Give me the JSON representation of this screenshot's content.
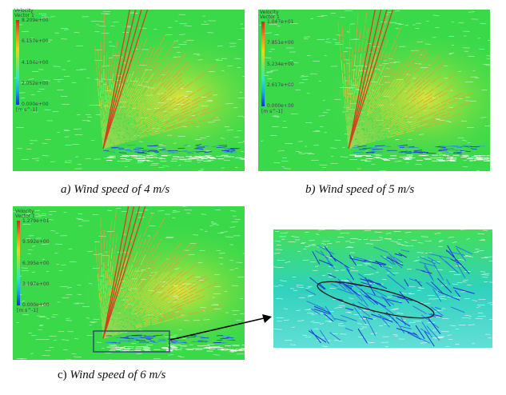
{
  "panels": [
    {
      "id": "a",
      "legend": {
        "title_line1": "Velocity",
        "title_line2": "Vector 1",
        "ticks": [
          "8.209e+00",
          "6.157e+00",
          "4.104e+00",
          "2.052e+00",
          "0.000e+00"
        ],
        "unit": "[m s^-1]"
      },
      "caption": "a) Wind speed of 4 m/s"
    },
    {
      "id": "b",
      "legend": {
        "title_line1": "Velocity",
        "title_line2": "Vector 1",
        "ticks": [
          "1.047e+01",
          "7.851e+00",
          "5.234e+00",
          "2.617e+00",
          "0.000e+00"
        ],
        "unit": "[m s^-1]"
      },
      "caption": "b) Wind speed of 5 m/s"
    },
    {
      "id": "c",
      "legend": {
        "title_line1": "Velocity",
        "title_line2": "Vector 1",
        "ticks": [
          "1.279e+01",
          "9.592e+00",
          "6.395e+00",
          "3.197e+00",
          "0.000e+00"
        ],
        "unit": "[m s^-1]"
      },
      "caption_prefix": "c)",
      "caption": "Wind speed of 6 m/s"
    }
  ],
  "colors": {
    "background_flow": "#3ad94a",
    "high_speed": "#d42a1a",
    "mid_speed": "#f2d21c",
    "low_speed": "#1a2fd8",
    "zoom_box": "#2f4f6f"
  }
}
